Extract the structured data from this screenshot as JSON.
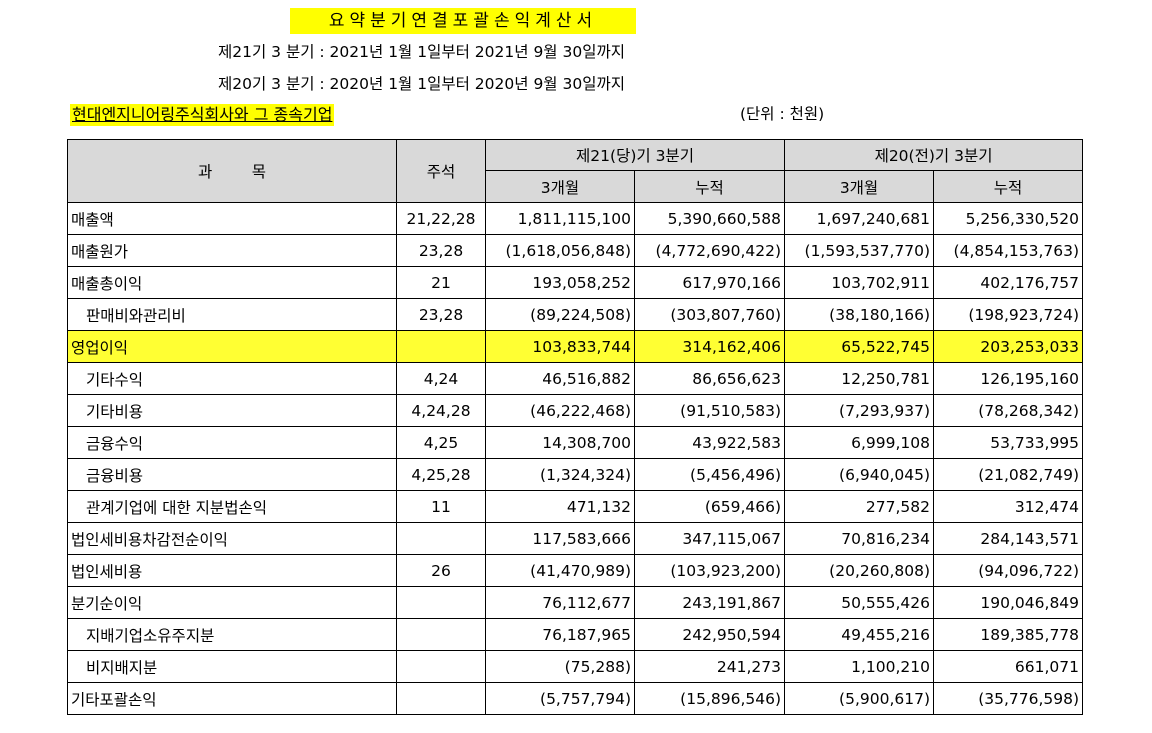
{
  "header": {
    "title": "요약분기연결포괄손익계산서",
    "period_current": "제21기  3 분기 : 2021년 1월 1일부터 2021년 9월 30일까지",
    "period_prior": "제20기  3 분기 : 2020년 1월 1일부터 2020년 9월 30일까지",
    "company": "현대엔지니어링주식회사와 그 종속기업",
    "unit": "(단위 : 천원)"
  },
  "table": {
    "col_item": "과        목",
    "col_note": "주석",
    "col_current": "제21(당)기 3분기",
    "col_prior": "제20(전)기 3분기",
    "sub_3m": "3개월",
    "sub_cum": "누적",
    "rows": [
      {
        "name": "매출액",
        "note": "21,22,28",
        "c3": "1,811,115,100",
        "ccum": "5,390,660,588",
        "p3": "1,697,240,681",
        "pcum": "5,256,330,520"
      },
      {
        "name": "매출원가",
        "note": "23,28",
        "c3": "(1,618,056,848)",
        "ccum": "(4,772,690,422)",
        "p3": "(1,593,537,770)",
        "pcum": "(4,854,153,763)"
      },
      {
        "name": "매출총이익",
        "note": "21",
        "c3": "193,058,252",
        "ccum": "617,970,166",
        "p3": "103,702,911",
        "pcum": "402,176,757"
      },
      {
        "name": "판매비와관리비",
        "note": "23,28",
        "c3": "(89,224,508)",
        "ccum": "(303,807,760)",
        "p3": "(38,180,166)",
        "pcum": "(198,923,724)"
      },
      {
        "name": "영업이익",
        "note": "",
        "c3": "103,833,744",
        "ccum": "314,162,406",
        "p3": "65,522,745",
        "pcum": "203,253,033"
      },
      {
        "name": "기타수익",
        "note": "4,24",
        "c3": "46,516,882",
        "ccum": "86,656,623",
        "p3": "12,250,781",
        "pcum": "126,195,160"
      },
      {
        "name": "기타비용",
        "note": "4,24,28",
        "c3": "(46,222,468)",
        "ccum": "(91,510,583)",
        "p3": "(7,293,937)",
        "pcum": "(78,268,342)"
      },
      {
        "name": "금융수익",
        "note": "4,25",
        "c3": "14,308,700",
        "ccum": "43,922,583",
        "p3": "6,999,108",
        "pcum": "53,733,995"
      },
      {
        "name": "금융비용",
        "note": "4,25,28",
        "c3": "(1,324,324)",
        "ccum": "(5,456,496)",
        "p3": "(6,940,045)",
        "pcum": "(21,082,749)"
      },
      {
        "name": "관계기업에 대한 지분법손익",
        "note": "11",
        "c3": "471,132",
        "ccum": "(659,466)",
        "p3": "277,582",
        "pcum": "312,474"
      },
      {
        "name": "법인세비용차감전순이익",
        "note": "",
        "c3": "117,583,666",
        "ccum": "347,115,067",
        "p3": "70,816,234",
        "pcum": "284,143,571"
      },
      {
        "name": "법인세비용",
        "note": "26",
        "c3": "(41,470,989)",
        "ccum": "(103,923,200)",
        "p3": "(20,260,808)",
        "pcum": "(94,096,722)"
      },
      {
        "name": "분기순이익",
        "note": "",
        "c3": "76,112,677",
        "ccum": "243,191,867",
        "p3": "50,555,426",
        "pcum": "190,046,849"
      },
      {
        "name": "지배기업소유주지분",
        "note": "",
        "c3": "76,187,965",
        "ccum": "242,950,594",
        "p3": "49,455,216",
        "pcum": "189,385,778"
      },
      {
        "name": "비지배지분",
        "note": "",
        "c3": "(75,288)",
        "ccum": "241,273",
        "p3": "1,100,210",
        "pcum": "661,071"
      },
      {
        "name": "기타포괄손익",
        "note": "",
        "c3": "(5,757,794)",
        "ccum": "(15,896,546)",
        "p3": "(5,900,617)",
        "pcum": "(35,776,598)"
      }
    ]
  }
}
